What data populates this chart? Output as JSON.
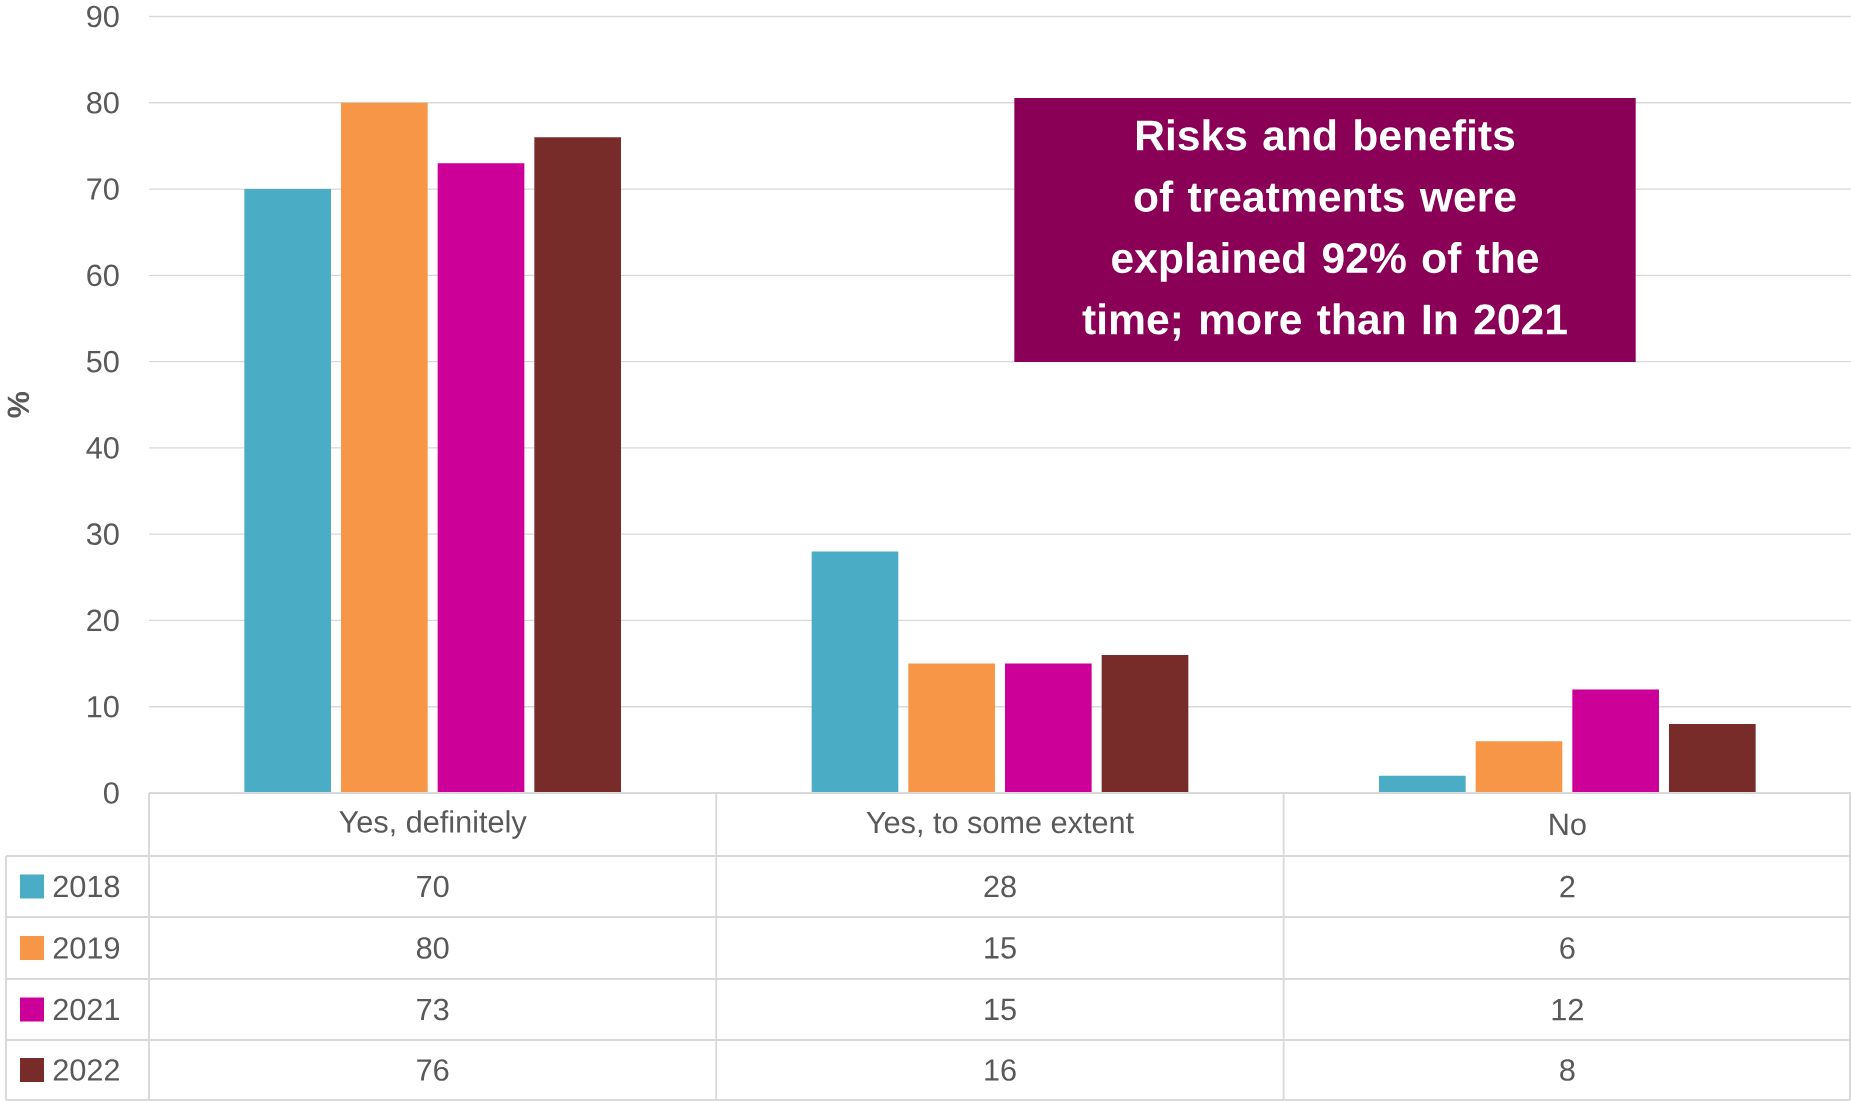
{
  "chart_data": {
    "type": "bar",
    "ylabel": "%",
    "categories": [
      "Yes, definitely",
      "Yes, to some extent",
      "No"
    ],
    "series": [
      {
        "name": "2018",
        "color": "#4bacc6",
        "values": [
          70,
          28,
          2
        ]
      },
      {
        "name": "2019",
        "color": "#f79646",
        "values": [
          80,
          15,
          6
        ]
      },
      {
        "name": "2021",
        "color": "#cc0099",
        "values": [
          73,
          15,
          12
        ]
      },
      {
        "name": "2022",
        "color": "#772c2a",
        "values": [
          76,
          16,
          8
        ]
      }
    ],
    "ylim": [
      0,
      90
    ],
    "yticks": [
      0,
      10,
      20,
      30,
      40,
      50,
      60,
      70,
      80,
      90
    ],
    "grid": "y",
    "legend": "bottom",
    "data_labels": true,
    "annotations": [
      "Risks and benefits of treatments were explained 92% of the time; more than In 2021"
    ]
  }
}
